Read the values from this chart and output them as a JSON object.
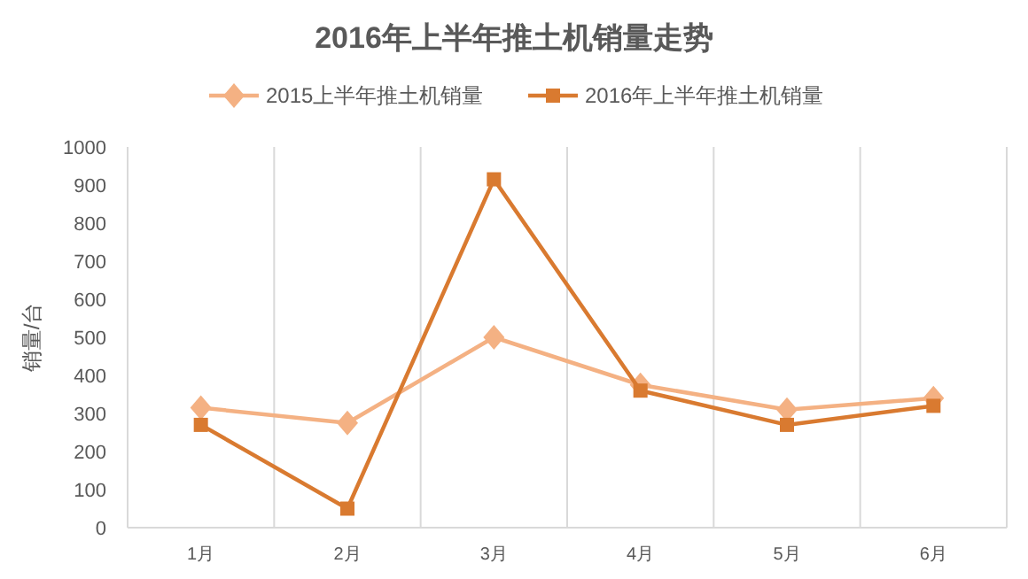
{
  "chart_data": {
    "type": "line",
    "title": "2016年上半年推土机销量走势",
    "ylabel": "销量/台",
    "categories": [
      "1月",
      "2月",
      "3月",
      "4月",
      "5月",
      "6月"
    ],
    "series": [
      {
        "name": "2015上半年推土机销量",
        "color": "#f4b183",
        "marker": "diamond",
        "values": [
          315,
          275,
          500,
          375,
          310,
          340
        ]
      },
      {
        "name": "2016年上半年推土机销量",
        "color": "#d97a30",
        "marker": "square",
        "values": [
          270,
          50,
          915,
          360,
          270,
          320
        ]
      }
    ],
    "ylim": [
      0,
      1000
    ],
    "yticks": [
      0,
      100,
      200,
      300,
      400,
      500,
      600,
      700,
      800,
      900,
      1000
    ],
    "grid": "x",
    "legend": "top"
  }
}
